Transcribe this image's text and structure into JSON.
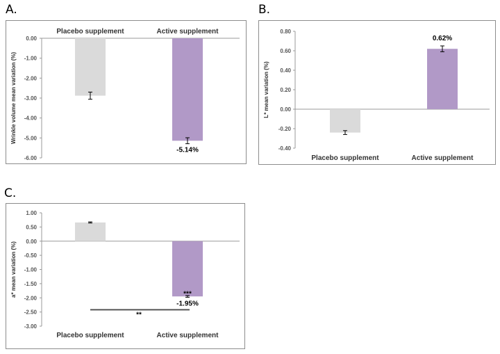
{
  "colors": {
    "placebo": "#dadada",
    "active": "#b199c7",
    "axis": "#999999",
    "sigline": "#555555",
    "errorbar": "#000000"
  },
  "chart_data": [
    {
      "panel": "A.",
      "type": "bar",
      "categories": [
        "Placebo supplement",
        "Active supplement"
      ],
      "categories_position": "top",
      "values": [
        -2.88,
        -5.14
      ],
      "errors": [
        0.18,
        0.15
      ],
      "data_labels": [
        "",
        "-5.14%"
      ],
      "ylabel": "Wrinkle volume mean variation (%)",
      "ylim": [
        -6.0,
        0.0
      ],
      "yticks": [
        0.0,
        -1.0,
        -2.0,
        -3.0,
        -4.0,
        -5.0,
        -6.0
      ],
      "ytick_labels": [
        "0.00",
        "-1.00",
        "-2.00",
        "-3.00",
        "-4.00",
        "-5.00",
        "-6.00"
      ],
      "grid": false
    },
    {
      "panel": "B.",
      "type": "bar",
      "categories": [
        "Placebo  supplement",
        "Active supplement"
      ],
      "categories_position": "bottom",
      "values": [
        -0.24,
        0.62
      ],
      "errors": [
        0.02,
        0.03
      ],
      "data_labels": [
        "",
        "0.62%"
      ],
      "ylabel": "L* mean variation (%)",
      "ylim": [
        -0.4,
        0.8
      ],
      "yticks": [
        0.8,
        0.6,
        0.4,
        0.2,
        0.0,
        -0.2,
        -0.4
      ],
      "ytick_labels": [
        "0.80",
        "0.60",
        "0.40",
        "0.20",
        "0.00",
        "-0.20",
        "-0.40"
      ],
      "grid": false
    },
    {
      "panel": "C.",
      "type": "bar",
      "categories": [
        "Placebo  supplement",
        "Active supplement"
      ],
      "categories_position": "bottom",
      "values": [
        0.66,
        -1.95
      ],
      "errors": [
        0.02,
        0.03
      ],
      "data_labels": [
        "",
        "-1.95%"
      ],
      "bar_annotations": [
        "",
        "***"
      ],
      "significance": {
        "label": "**",
        "y": -2.42
      },
      "ylabel": "a* mean variation (%)",
      "ylim": [
        -3.0,
        1.0
      ],
      "yticks": [
        1.0,
        0.5,
        0.0,
        -0.5,
        -1.0,
        -1.5,
        -2.0,
        -2.5,
        -3.0
      ],
      "ytick_labels": [
        "1.00",
        "0.50",
        "0.00",
        "-0.50",
        "-1.00",
        "-1.50",
        "-2.00",
        "-2.50",
        "-3.00"
      ],
      "grid": false
    }
  ]
}
